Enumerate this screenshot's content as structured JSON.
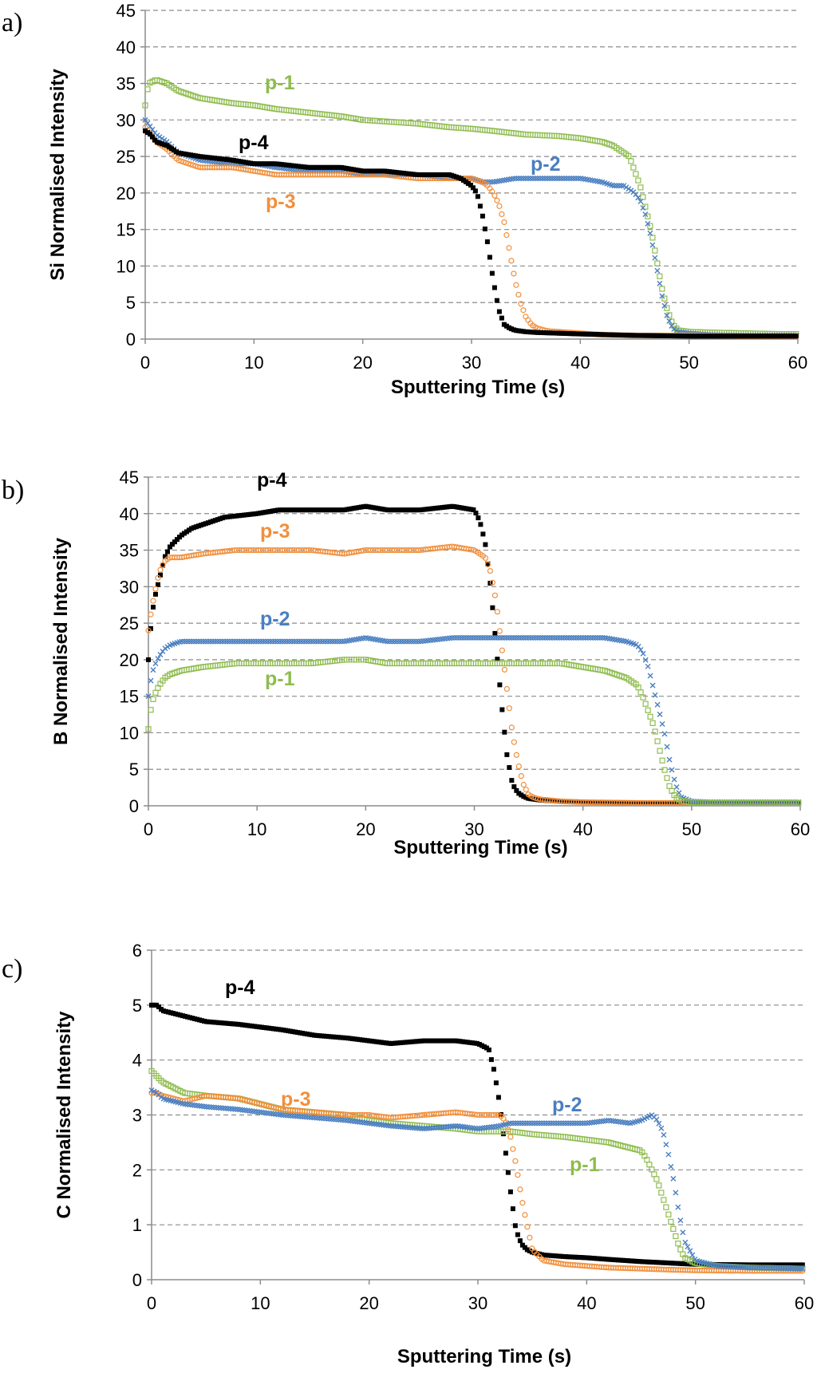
{
  "figure": {
    "series_colors": {
      "p-1": "#8fbc4f",
      "p-2": "#4a7fc1",
      "p-3": "#f28f3b",
      "p-4": "#000000"
    }
  },
  "chart_data": [
    {
      "panel_label": "a)",
      "type": "scatter",
      "title": "",
      "xlabel": "Sputtering Time (s)",
      "ylabel": "Si Normalised Intensity",
      "xlim": [
        0,
        60
      ],
      "ylim": [
        0,
        45
      ],
      "xticks": [
        0,
        10,
        20,
        30,
        40,
        50,
        60
      ],
      "yticks": [
        0,
        5,
        10,
        15,
        20,
        25,
        30,
        35,
        40,
        45
      ],
      "grid": "horizontal-dashed",
      "series": [
        {
          "name": "p-1",
          "label": "p-1",
          "marker": "square-open",
          "x": [
            0,
            0.3,
            1,
            2,
            3,
            5,
            8,
            10,
            12,
            15,
            18,
            20,
            22,
            25,
            28,
            30,
            32,
            35,
            38,
            40,
            42,
            43,
            44,
            44.5,
            45,
            45.5,
            46,
            46.5,
            47,
            47.5,
            48,
            48.5,
            49,
            50,
            52,
            55,
            58,
            60
          ],
          "y": [
            32,
            35,
            35.5,
            35,
            34,
            33,
            32.3,
            32,
            31.5,
            31,
            30.5,
            30,
            29.8,
            29.5,
            29,
            28.8,
            28.5,
            28,
            27.8,
            27.5,
            27,
            26.5,
            25.5,
            25,
            23,
            21,
            18,
            15,
            11,
            7,
            4,
            2,
            1.2,
            1,
            0.9,
            0.8,
            0.7,
            0.7
          ]
        },
        {
          "name": "p-2",
          "label": "p-2",
          "marker": "x",
          "x": [
            0,
            0.5,
            1,
            2,
            3,
            5,
            8,
            10,
            12,
            15,
            18,
            20,
            22,
            25,
            28,
            30,
            31,
            32,
            34,
            36,
            38,
            40,
            42,
            43,
            44,
            45,
            45.5,
            46,
            46.5,
            47,
            47.5,
            48,
            48.5,
            49,
            50,
            52,
            55,
            58,
            60
          ],
          "y": [
            30,
            29,
            28,
            27,
            25.5,
            24.5,
            24,
            24,
            23.5,
            23,
            23,
            22.5,
            22.5,
            22.5,
            22,
            22,
            21.5,
            21.5,
            22,
            22,
            22,
            22,
            21.5,
            21,
            21,
            20,
            19,
            17,
            14,
            10,
            6,
            3,
            1.5,
            1,
            0.8,
            0.6,
            0.5,
            0.5,
            0.5
          ]
        },
        {
          "name": "p-3",
          "label": "p-3",
          "marker": "circle-open",
          "x": [
            0,
            0.5,
            1,
            2,
            3,
            5,
            8,
            10,
            12,
            15,
            18,
            20,
            22,
            25,
            28,
            30,
            31,
            31.5,
            32,
            32.5,
            33,
            33.5,
            34,
            34.5,
            35,
            35.5,
            36,
            37,
            38,
            40,
            42,
            45,
            50,
            55,
            60
          ],
          "y": [
            29,
            28,
            27,
            26,
            24.5,
            23.5,
            23.5,
            23,
            22.5,
            22.5,
            22.5,
            22.5,
            22.5,
            22,
            22,
            22,
            21.5,
            21,
            20,
            18.5,
            16,
            12,
            8,
            5,
            3,
            2,
            1.5,
            1.1,
            1,
            0.8,
            0.6,
            0.5,
            0.5,
            0.4,
            0.4
          ]
        },
        {
          "name": "p-4",
          "label": "p-4",
          "marker": "square-filled",
          "x": [
            0,
            0.5,
            1,
            2,
            3,
            5,
            8,
            10,
            12,
            15,
            18,
            20,
            22,
            25,
            28,
            29,
            30,
            30.5,
            31,
            31.5,
            32,
            32.5,
            33,
            33.5,
            34,
            35,
            36,
            38,
            40,
            45,
            50,
            55,
            60
          ],
          "y": [
            28.5,
            28,
            27,
            26.5,
            25.5,
            25,
            24.5,
            24,
            24,
            23.5,
            23.5,
            23,
            23,
            22.5,
            22.5,
            22,
            21,
            20,
            17,
            13,
            8,
            4,
            2,
            1.5,
            1.2,
            1,
            0.9,
            0.8,
            0.7,
            0.5,
            0.4,
            0.4,
            0.4
          ]
        }
      ]
    },
    {
      "panel_label": "b)",
      "type": "scatter",
      "title": "",
      "xlabel": "Sputtering Time (s)",
      "ylabel": "B Normalised Intensity",
      "xlim": [
        0,
        60
      ],
      "ylim": [
        0,
        45
      ],
      "xticks": [
        0,
        10,
        20,
        30,
        40,
        50,
        60
      ],
      "yticks": [
        0,
        5,
        10,
        15,
        20,
        25,
        30,
        35,
        40,
        45
      ],
      "grid": "horizontal-dashed",
      "series": [
        {
          "name": "p-4",
          "label": "p-4",
          "marker": "square-filled",
          "x": [
            0,
            0.2,
            0.5,
            1,
            1.5,
            2,
            3,
            4,
            5,
            7,
            10,
            12,
            15,
            18,
            20,
            22,
            25,
            28,
            30,
            30.5,
            31,
            31.5,
            32,
            32.5,
            33,
            33.5,
            34,
            34.5,
            35,
            36,
            38,
            40,
            45,
            50,
            55,
            60
          ],
          "y": [
            20,
            24,
            28,
            31,
            34,
            35.5,
            37,
            38,
            38.5,
            39.5,
            40,
            40.5,
            40.5,
            40.5,
            41,
            40.5,
            40.5,
            41,
            40.5,
            39,
            36,
            30,
            22,
            14,
            7,
            3,
            1.8,
            1.3,
            1,
            0.8,
            0.6,
            0.5,
            0.4,
            0.4,
            0.4,
            0.4
          ]
        },
        {
          "name": "p-3",
          "label": "p-3",
          "marker": "circle-open",
          "x": [
            0,
            0.3,
            0.7,
            1,
            1.5,
            2,
            3,
            5,
            8,
            10,
            12,
            15,
            18,
            20,
            22,
            25,
            28,
            30,
            31,
            31.5,
            32,
            32.5,
            33,
            33.5,
            34,
            34.5,
            35,
            35.5,
            36,
            38,
            40,
            45,
            50,
            55,
            60
          ],
          "y": [
            24,
            27,
            30,
            32,
            33.5,
            34,
            34,
            34.5,
            35,
            35,
            35,
            35,
            34.5,
            35,
            35,
            35,
            35.5,
            35,
            34,
            32,
            28,
            22,
            16,
            10,
            6,
            3,
            1.5,
            1.1,
            0.9,
            0.6,
            0.5,
            0.4,
            0.4,
            0.4,
            0.4
          ]
        },
        {
          "name": "p-2",
          "label": "p-2",
          "marker": "x",
          "x": [
            0,
            0.2,
            0.5,
            1,
            1.5,
            2,
            3,
            5,
            8,
            10,
            12,
            15,
            18,
            20,
            22,
            25,
            28,
            30,
            32,
            35,
            38,
            40,
            42,
            44,
            45,
            45.5,
            46,
            46.5,
            47,
            47.5,
            48,
            48.5,
            49,
            50,
            52,
            55,
            58,
            60
          ],
          "y": [
            15,
            17,
            19,
            20.5,
            21.5,
            22,
            22.5,
            22.5,
            22.5,
            22.5,
            22.5,
            22.5,
            22.5,
            23,
            22.5,
            22.5,
            23,
            23,
            23,
            23,
            23,
            23,
            23,
            22.5,
            22,
            21,
            19,
            16,
            13,
            10,
            6,
            3,
            1.2,
            0.6,
            0.5,
            0.5,
            0.5,
            0.5
          ]
        },
        {
          "name": "p-1",
          "label": "p-1",
          "marker": "square-open",
          "x": [
            0,
            0.2,
            0.5,
            1,
            1.5,
            2,
            3,
            5,
            8,
            10,
            12,
            15,
            18,
            20,
            22,
            25,
            28,
            30,
            32,
            35,
            38,
            40,
            42,
            43,
            44,
            45,
            45.5,
            46,
            46.5,
            47,
            47.5,
            48,
            48.5,
            49,
            50,
            52,
            55,
            58,
            60
          ],
          "y": [
            10.5,
            13,
            15,
            16.5,
            17.5,
            18,
            18.5,
            19,
            19.5,
            19.5,
            19.5,
            19.5,
            20,
            20,
            19.5,
            19.5,
            19.5,
            19.5,
            19.5,
            19.5,
            19.5,
            19,
            18.5,
            18,
            17.5,
            16.5,
            15,
            13,
            11,
            8,
            5,
            2.5,
            1.2,
            0.7,
            0.5,
            0.4,
            0.4,
            0.4,
            0.4
          ]
        }
      ]
    },
    {
      "panel_label": "c)",
      "type": "scatter",
      "title": "",
      "xlabel": "Sputtering Time (s)",
      "ylabel": "C Normalised Intensity",
      "xlim": [
        0,
        60
      ],
      "ylim": [
        0,
        6
      ],
      "xticks": [
        0,
        10,
        20,
        30,
        40,
        50,
        60
      ],
      "yticks": [
        0,
        1,
        2,
        3,
        4,
        5,
        6
      ],
      "grid": "horizontal-dashed",
      "series": [
        {
          "name": "p-4",
          "label": "p-4",
          "marker": "square-filled",
          "x": [
            0,
            0.5,
            1,
            2,
            3,
            5,
            8,
            10,
            12,
            15,
            18,
            20,
            22,
            25,
            28,
            30,
            31,
            31.5,
            32,
            32.5,
            33,
            33.5,
            34,
            34.5,
            35,
            36,
            38,
            40,
            42,
            45,
            48,
            50,
            55,
            60
          ],
          "y": [
            5,
            5,
            4.9,
            4.85,
            4.8,
            4.7,
            4.65,
            4.6,
            4.55,
            4.45,
            4.4,
            4.35,
            4.3,
            4.35,
            4.35,
            4.3,
            4.2,
            3.8,
            3.2,
            2.4,
            1.6,
            0.9,
            0.65,
            0.55,
            0.5,
            0.45,
            0.42,
            0.4,
            0.37,
            0.33,
            0.3,
            0.28,
            0.27,
            0.27
          ]
        },
        {
          "name": "p-1",
          "label": "p-1",
          "marker": "square-open",
          "x": [
            0,
            0.5,
            1,
            2,
            3,
            5,
            8,
            10,
            12,
            15,
            18,
            20,
            22,
            25,
            28,
            30,
            32,
            33,
            35,
            38,
            40,
            42,
            44,
            45,
            45.5,
            46,
            46.5,
            47,
            47.5,
            48,
            48.5,
            49,
            50,
            52,
            55,
            60
          ],
          "y": [
            3.8,
            3.7,
            3.6,
            3.5,
            3.4,
            3.35,
            3.3,
            3.2,
            3.1,
            3.05,
            3,
            2.9,
            2.85,
            2.8,
            2.75,
            2.7,
            2.7,
            2.7,
            2.65,
            2.6,
            2.55,
            2.5,
            2.4,
            2.35,
            2.2,
            2,
            1.8,
            1.5,
            1.2,
            0.9,
            0.6,
            0.4,
            0.3,
            0.25,
            0.22,
            0.2
          ]
        },
        {
          "name": "p-3",
          "label": "p-3",
          "marker": "circle-open",
          "x": [
            0,
            0.5,
            1,
            2,
            3,
            5,
            8,
            10,
            12,
            15,
            18,
            20,
            22,
            25,
            28,
            30,
            32,
            32.5,
            33,
            33.5,
            34,
            34.5,
            35,
            36,
            38,
            40,
            42,
            45,
            48,
            50,
            55,
            60
          ],
          "y": [
            3.4,
            3.4,
            3.35,
            3.3,
            3.25,
            3.35,
            3.3,
            3.2,
            3.1,
            3.05,
            3,
            3,
            2.95,
            3,
            3.05,
            3,
            3,
            2.9,
            2.6,
            2.1,
            1.5,
            1,
            0.55,
            0.35,
            0.28,
            0.25,
            0.22,
            0.2,
            0.18,
            0.17,
            0.16,
            0.16
          ]
        },
        {
          "name": "p-2",
          "label": "p-2",
          "marker": "x",
          "x": [
            0,
            0.5,
            1,
            2,
            3,
            5,
            8,
            10,
            12,
            15,
            18,
            20,
            22,
            25,
            28,
            30,
            32,
            33,
            35,
            38,
            40,
            42,
            44,
            45,
            45.5,
            46,
            46.5,
            47,
            47.5,
            48,
            48.5,
            49,
            50,
            52,
            55,
            60
          ],
          "y": [
            3.45,
            3.4,
            3.3,
            3.25,
            3.2,
            3.15,
            3.1,
            3.05,
            3,
            2.95,
            2.9,
            2.85,
            2.8,
            2.75,
            2.8,
            2.75,
            2.8,
            2.85,
            2.85,
            2.85,
            2.85,
            2.9,
            2.85,
            2.9,
            2.95,
            3,
            2.9,
            2.7,
            2.3,
            1.8,
            1.2,
            0.7,
            0.35,
            0.25,
            0.22,
            0.2
          ]
        }
      ]
    }
  ]
}
